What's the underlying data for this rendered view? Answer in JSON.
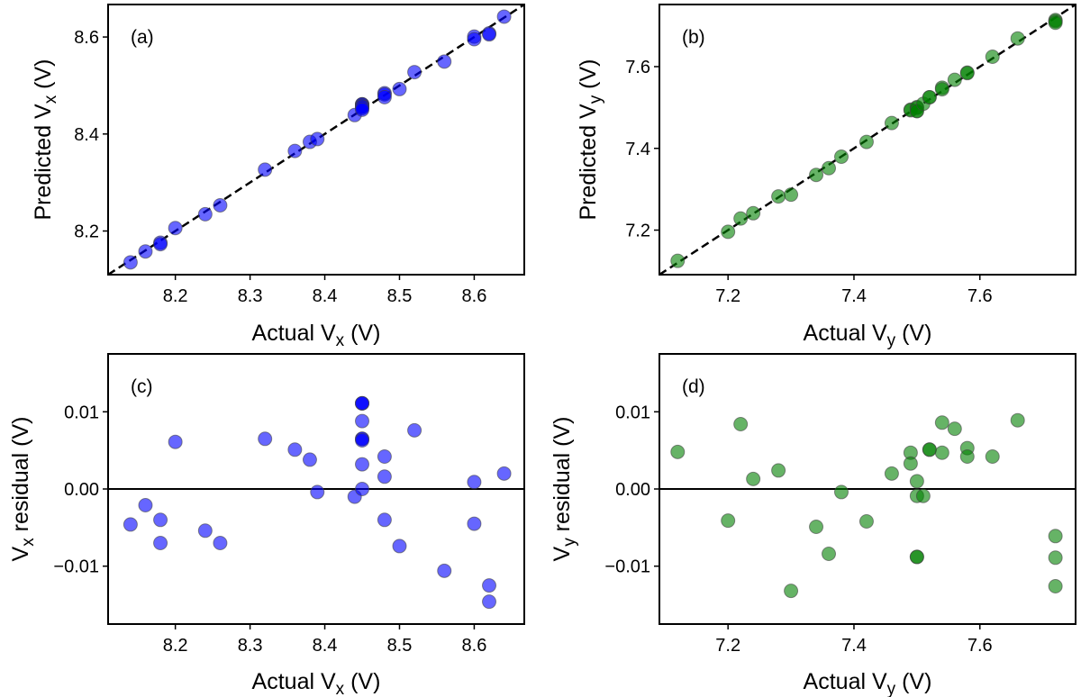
{
  "colors": {
    "vx_points": "#0000ff",
    "vy_points": "#008000",
    "reference_line": "#000000"
  },
  "chart_data": [
    {
      "type": "scatter",
      "panel_label": "(a)",
      "xlabel_parts": {
        "pre": "Actual V",
        "sub": "x",
        "post": " (V)"
      },
      "ylabel_parts": {
        "pre": "Predicted V",
        "sub": "x",
        "post": " (V)"
      },
      "xlim": [
        8.11,
        8.667
      ],
      "ylim": [
        8.11,
        8.667
      ],
      "xticks": [
        8.2,
        8.3,
        8.4,
        8.5,
        8.6
      ],
      "xtick_labels": [
        "8.2",
        "8.3",
        "8.4",
        "8.5",
        "8.6"
      ],
      "yticks": [
        8.2,
        8.4,
        8.6
      ],
      "ytick_labels": [
        "8.2",
        "8.4",
        "8.6"
      ],
      "reference_line": {
        "kind": "y = x",
        "style": "dashed"
      },
      "grid": false,
      "color": "#0000ff",
      "x": [
        8.14,
        8.16,
        8.18,
        8.18,
        8.2,
        8.24,
        8.26,
        8.32,
        8.36,
        8.38,
        8.39,
        8.44,
        8.45,
        8.45,
        8.45,
        8.45,
        8.45,
        8.45,
        8.45,
        8.45,
        8.45,
        8.48,
        8.48,
        8.48,
        8.5,
        8.52,
        8.56,
        8.6,
        8.6,
        8.62,
        8.62,
        8.64
      ],
      "y": [
        8.1354,
        8.1579,
        8.176,
        8.173,
        8.2061,
        8.2346,
        8.253,
        8.3265,
        8.3651,
        8.3838,
        8.3896,
        8.439,
        8.4611,
        8.4611,
        8.4611,
        8.4588,
        8.4565,
        8.4565,
        8.4563,
        8.4532,
        8.45,
        8.4842,
        8.4816,
        8.476,
        8.4926,
        8.5276,
        8.5494,
        8.6009,
        8.5955,
        8.6075,
        8.6054,
        8.642
      ]
    },
    {
      "type": "scatter",
      "panel_label": "(b)",
      "xlabel_parts": {
        "pre": "Actual V",
        "sub": "y",
        "post": " (V)"
      },
      "ylabel_parts": {
        "pre": "Predicted V",
        "sub": "y",
        "post": " (V)"
      },
      "xlim": [
        7.091,
        7.752
      ],
      "ylim": [
        7.091,
        7.752
      ],
      "xticks": [
        7.2,
        7.4,
        7.6
      ],
      "xtick_labels": [
        "7.2",
        "7.4",
        "7.6"
      ],
      "yticks": [
        7.2,
        7.4,
        7.6
      ],
      "ytick_labels": [
        "7.2",
        "7.4",
        "7.6"
      ],
      "reference_line": {
        "kind": "y = x",
        "style": "dashed"
      },
      "grid": false,
      "color": "#008000",
      "x": [
        7.12,
        7.2,
        7.22,
        7.24,
        7.28,
        7.3,
        7.34,
        7.36,
        7.38,
        7.42,
        7.46,
        7.49,
        7.49,
        7.5,
        7.5,
        7.5,
        7.5,
        7.51,
        7.52,
        7.52,
        7.54,
        7.54,
        7.56,
        7.58,
        7.58,
        7.62,
        7.66,
        7.72,
        7.72,
        7.72
      ],
      "y": [
        7.1248,
        7.1959,
        7.2284,
        7.2413,
        7.2824,
        7.2868,
        7.3351,
        7.3516,
        7.3796,
        7.4158,
        7.462,
        7.4947,
        7.4933,
        7.501,
        7.4991,
        7.4912,
        7.4912,
        7.5091,
        7.5251,
        7.5251,
        7.5486,
        7.5447,
        7.5678,
        7.5853,
        7.5842,
        7.6242,
        7.6689,
        7.7139,
        7.7111,
        7.7074
      ]
    },
    {
      "type": "scatter",
      "panel_label": "(c)",
      "xlabel_parts": {
        "pre": "Actual V",
        "sub": "x",
        "post": " (V)"
      },
      "ylabel_parts": {
        "pre": "V",
        "sub": "x",
        "post": " residual (V)"
      },
      "xlim": [
        8.11,
        8.667
      ],
      "ylim": [
        -0.0175,
        0.0175
      ],
      "xticks": [
        8.2,
        8.3,
        8.4,
        8.5,
        8.6
      ],
      "xtick_labels": [
        "8.2",
        "8.3",
        "8.4",
        "8.5",
        "8.6"
      ],
      "yticks": [
        0.01,
        0.0,
        -0.01
      ],
      "ytick_labels": [
        "0.01",
        "0.00",
        "−0.01"
      ],
      "reference_line": {
        "kind": "y = 0",
        "style": "solid"
      },
      "grid": false,
      "color": "#0000ff",
      "x": [
        8.14,
        8.16,
        8.18,
        8.18,
        8.2,
        8.24,
        8.26,
        8.32,
        8.36,
        8.38,
        8.39,
        8.44,
        8.45,
        8.45,
        8.45,
        8.45,
        8.45,
        8.45,
        8.45,
        8.45,
        8.45,
        8.48,
        8.48,
        8.48,
        8.5,
        8.52,
        8.56,
        8.6,
        8.6,
        8.62,
        8.62,
        8.64
      ],
      "y": [
        -0.0046,
        -0.0021,
        -0.004,
        -0.007,
        0.0061,
        -0.0054,
        -0.007,
        0.0065,
        0.0051,
        0.0038,
        -0.0004,
        -0.001,
        0.0111,
        0.0111,
        0.0111,
        0.0088,
        0.0065,
        0.0065,
        0.0063,
        0.0032,
        0.0,
        0.0042,
        0.0016,
        -0.004,
        -0.0074,
        0.0076,
        -0.0106,
        0.0009,
        -0.0045,
        -0.0125,
        -0.0146,
        0.002
      ]
    },
    {
      "type": "scatter",
      "panel_label": "(d)",
      "xlabel_parts": {
        "pre": "Actual V",
        "sub": "y",
        "post": " (V)"
      },
      "ylabel_parts": {
        "pre": "V",
        "sub": "y",
        "post": " residual (V)"
      },
      "xlim": [
        7.091,
        7.752
      ],
      "ylim": [
        -0.0175,
        0.0175
      ],
      "xticks": [
        7.2,
        7.4,
        7.6
      ],
      "xtick_labels": [
        "7.2",
        "7.4",
        "7.6"
      ],
      "yticks": [
        0.01,
        0.0,
        -0.01
      ],
      "ytick_labels": [
        "0.01",
        "0.00",
        "−0.01"
      ],
      "reference_line": {
        "kind": "y = 0",
        "style": "solid"
      },
      "grid": false,
      "color": "#008000",
      "x": [
        7.12,
        7.2,
        7.22,
        7.24,
        7.28,
        7.3,
        7.34,
        7.36,
        7.38,
        7.42,
        7.46,
        7.49,
        7.49,
        7.5,
        7.5,
        7.5,
        7.5,
        7.51,
        7.52,
        7.52,
        7.54,
        7.54,
        7.56,
        7.58,
        7.58,
        7.62,
        7.66,
        7.72,
        7.72,
        7.72
      ],
      "y": [
        0.0048,
        -0.0041,
        0.0084,
        0.0013,
        0.0024,
        -0.0132,
        -0.0049,
        -0.0084,
        -0.0004,
        -0.0042,
        0.002,
        0.0047,
        0.0033,
        0.001,
        -0.0009,
        -0.0088,
        -0.0088,
        -0.0009,
        0.0051,
        0.0051,
        0.0086,
        0.0047,
        0.0078,
        0.0053,
        0.0042,
        0.0042,
        0.0089,
        -0.0061,
        -0.0089,
        -0.0126
      ]
    }
  ]
}
